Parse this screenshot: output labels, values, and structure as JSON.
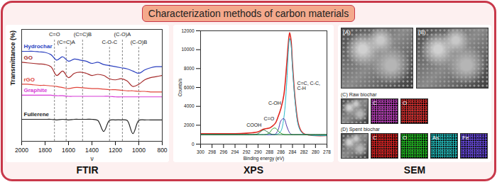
{
  "title": "Characterization methods of carbon materials",
  "chart_data": [
    {
      "type": "line",
      "caption": "FTIR",
      "x_label": "ν",
      "y_label": "Transmittance (%)",
      "x": [
        2000,
        1950,
        1900,
        1850,
        1800,
        1750,
        1700,
        1650,
        1600,
        1550,
        1500,
        1450,
        1400,
        1350,
        1300,
        1250,
        1200,
        1150,
        1100,
        1050,
        1000,
        950,
        900,
        850,
        800
      ],
      "xlim": [
        2000,
        800
      ],
      "xticks": [
        2000,
        1800,
        1600,
        1400,
        1200,
        1000,
        800
      ],
      "ylim": [
        10,
        112
      ],
      "tick_labels": "x",
      "grid": false,
      "series": [
        {
          "name": "Hydrochar",
          "color": "#2a3fbf",
          "values": [
            92,
            92,
            92,
            91.5,
            91,
            89,
            84,
            87,
            83,
            85,
            84,
            83,
            81,
            82,
            80,
            79,
            78,
            77,
            76,
            74,
            72,
            75,
            77,
            78,
            78
          ]
        },
        {
          "name": "GO",
          "color": "#a52a2a",
          "values": [
            82,
            81.5,
            81,
            80.5,
            80,
            78,
            70,
            74,
            68,
            72,
            73,
            72,
            70,
            71,
            70,
            67,
            66,
            67,
            65,
            60,
            62,
            66,
            68,
            69,
            70
          ]
        },
        {
          "name": "rGO",
          "color": "#e0443a",
          "values": [
            62,
            62,
            61.5,
            61,
            61,
            60.5,
            60,
            59,
            58,
            59,
            59,
            58.5,
            58,
            58,
            57.5,
            57,
            57,
            56.5,
            56,
            56,
            55.5,
            55.5,
            55,
            55,
            55
          ]
        },
        {
          "name": "Graphite",
          "color": "#d63ad6",
          "values": [
            52,
            52,
            52,
            52,
            52,
            52,
            51.5,
            51.5,
            51,
            51,
            51,
            51,
            51,
            51,
            51,
            51,
            50.5,
            50.5,
            50.5,
            50.5,
            50.5,
            50.5,
            50.5,
            50.5,
            50.5
          ]
        },
        {
          "name": "Fullerene",
          "color": "#222222",
          "values": [
            30,
            30,
            30,
            30,
            30,
            30,
            29.5,
            30,
            29.5,
            30,
            30,
            30,
            30,
            29,
            19,
            29,
            29.5,
            29.5,
            29,
            17,
            29,
            29.5,
            29.5,
            29.5,
            29.5
          ]
        }
      ],
      "annotations": [
        {
          "text": "C=O",
          "x": 1720
        },
        {
          "text": "(C=C)A",
          "x": 1620
        },
        {
          "text": "(C=C)B",
          "x": 1480
        },
        {
          "text": "C-O-C",
          "x": 1250
        },
        {
          "text": "(C-O)A",
          "x": 1140
        },
        {
          "text": "(C-O)B",
          "x": 1000
        }
      ]
    },
    {
      "type": "line",
      "caption": "XPS",
      "x_label": "Binding energy (eV)",
      "y_label": "Counts/s",
      "x": [
        300,
        298,
        296,
        294,
        292,
        291,
        290,
        289.5,
        289,
        288.5,
        288,
        287.5,
        287,
        286.5,
        286,
        285.5,
        285,
        284.75,
        284.5,
        284.25,
        284,
        283.5,
        283,
        282.5,
        282,
        281,
        280,
        278
      ],
      "xlim": [
        300,
        278
      ],
      "xticks": [
        300,
        298,
        296,
        294,
        292,
        290,
        288,
        286,
        284,
        282,
        280,
        278
      ],
      "ylim": [
        0,
        12000
      ],
      "yticks": [
        0,
        2000,
        4000,
        6000,
        8000,
        10000,
        12000
      ],
      "grid": false,
      "series": [
        {
          "color": "#e0261f",
          "values": [
            1100,
            1100,
            1100,
            1100,
            1150,
            1200,
            1300,
            1450,
            1600,
            1650,
            1700,
            1900,
            2200,
            2900,
            3800,
            5200,
            8500,
            10500,
            11800,
            11000,
            8500,
            4500,
            2200,
            1400,
            1100,
            950,
            900,
            900
          ]
        },
        {
          "name": "C=C, C-C, C-H",
          "color": "#29b8c9",
          "label_at": [
            283.2,
            6200
          ],
          "values": [
            1000,
            1000,
            1000,
            1000,
            1000,
            1000,
            1000,
            1000,
            1000,
            1000,
            1000,
            1000,
            1020,
            1100,
            1400,
            2800,
            6500,
            9500,
            11200,
            10500,
            8000,
            4200,
            2000,
            1300,
            1050,
            950,
            900,
            900
          ]
        },
        {
          "name": "C-OH",
          "color": "#4b2fa8",
          "label_at": [
            288.2,
            4300
          ],
          "values": [
            1000,
            1000,
            1000,
            1000,
            1000,
            1000,
            1000,
            1000,
            1000,
            1000,
            1000,
            1000,
            1050,
            1500,
            2500,
            2700,
            1900,
            1500,
            1200,
            1050,
            1000,
            1000,
            1000,
            1000,
            1000,
            1000,
            1000,
            1000
          ]
        },
        {
          "name": "C=O",
          "color": "#2ca02c",
          "label_at": [
            289.0,
            2700
          ],
          "values": [
            1000,
            1000,
            1000,
            1000,
            1000,
            1000,
            1000,
            1000,
            1000,
            1050,
            1200,
            1600,
            1700,
            1400,
            1150,
            1020,
            1000,
            1000,
            1000,
            1000,
            1000,
            1000,
            1000,
            1000,
            1000,
            1000,
            1000,
            1000
          ]
        },
        {
          "name": "COOH",
          "color": "#1f6b3a",
          "label_at": [
            292,
            2000
          ],
          "values": [
            1000,
            1000,
            1000,
            1000,
            1000,
            1000,
            1100,
            1350,
            1500,
            1350,
            1150,
            1030,
            1000,
            1000,
            1000,
            1000,
            1000,
            1000,
            1000,
            1000,
            1000,
            1000,
            1000,
            1000,
            1000,
            1000,
            1000,
            1000
          ]
        }
      ]
    }
  ],
  "sem": {
    "caption": "SEM",
    "images": [
      "(A)",
      "(B)"
    ],
    "maps": [
      {
        "title": "(C) Raw biochar",
        "elements": [
          "C",
          "O"
        ]
      },
      {
        "title": "(D) Spent biochar",
        "elements": [
          "C",
          "O",
          "As",
          "Fe"
        ]
      }
    ]
  }
}
